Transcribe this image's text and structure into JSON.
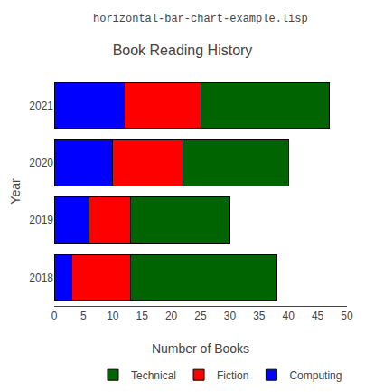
{
  "chart_data": {
    "type": "bar",
    "orientation": "horizontal",
    "stacked": true,
    "title": "Book Reading History",
    "annotations": [
      "horizontal-bar-chart-example.lisp"
    ],
    "xlabel": "Number of Books",
    "ylabel": "Year",
    "categories": [
      "2018",
      "2019",
      "2020",
      "2021"
    ],
    "series": [
      {
        "name": "Computing",
        "color": "#0000ff",
        "values": [
          3,
          6,
          10,
          12
        ]
      },
      {
        "name": "Fiction",
        "color": "#ff0000",
        "values": [
          10,
          7,
          12,
          13
        ]
      },
      {
        "name": "Technical",
        "color": "#006400",
        "values": [
          25,
          17,
          18,
          22
        ]
      }
    ],
    "xlim": [
      0,
      50
    ],
    "xticks": [
      0,
      5,
      10,
      15,
      20,
      25,
      30,
      35,
      40,
      45,
      50
    ],
    "grid": false,
    "legend": "lower right"
  }
}
